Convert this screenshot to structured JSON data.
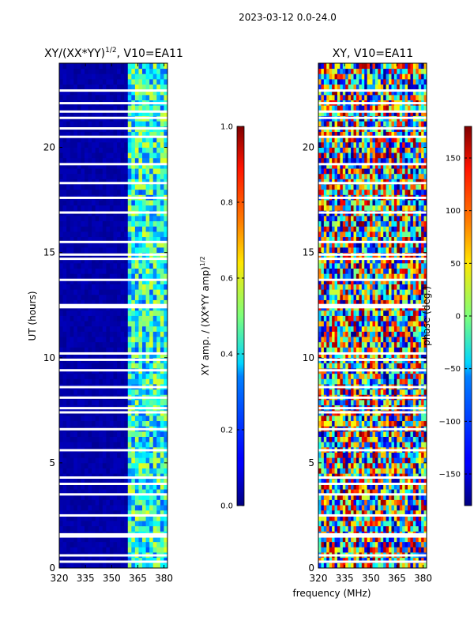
{
  "chart_data": {
    "suptitle": "2023-03-12 0.0-24.0",
    "common_xlabel": "frequency (MHz)",
    "panels": [
      {
        "type": "heatmap",
        "title": "XY/(XX*YY)^1/2, V10=EA11",
        "title_base": "XY/(XX*YY)",
        "title_sup": "1/2",
        "title_tail": ", V10=EA11",
        "xlabel": "frequency (MHz)",
        "ylabel": "UT (hours)",
        "x_ticks": [
          320,
          335,
          350,
          365,
          380
        ],
        "x_tick_labels": [
          "320",
          "335",
          "350",
          "365",
          "380"
        ],
        "y_ticks": [
          0,
          5,
          10,
          15,
          20
        ],
        "y_tick_labels": [
          "0",
          "5",
          "10",
          "15",
          "20"
        ],
        "xlim": [
          320,
          382
        ],
        "ylim": [
          0,
          24
        ],
        "colorbar": {
          "label": "XY amp. / (XX*YY amp)^1/2",
          "label_base": "XY amp. / (XX*YY amp)",
          "label_sup": "1/2",
          "range": [
            0.0,
            1.0
          ],
          "ticks": [
            0.0,
            0.2,
            0.4,
            0.6,
            0.8,
            1.0
          ],
          "tick_labels": [
            "0.0",
            "0.2",
            "0.4",
            "0.6",
            "0.8",
            "1.0"
          ]
        },
        "description_bands": {
          "low_band_mhz": [
            320,
            359
          ],
          "low_band_value": 0.02,
          "high_band_mhz": [
            359,
            380
          ],
          "high_band_value_range": [
            0.2,
            0.6
          ]
        }
      },
      {
        "type": "heatmap",
        "title": "XY, V10=EA11",
        "xlabel": "frequency (MHz)",
        "ylabel": "",
        "x_ticks": [
          320,
          335,
          350,
          365,
          380
        ],
        "x_tick_labels": [
          "320",
          "335",
          "350",
          "365",
          "380"
        ],
        "y_ticks": [
          0,
          5,
          10,
          15,
          20
        ],
        "y_tick_labels": [
          "0",
          "5",
          "10",
          "15",
          "20"
        ],
        "xlim": [
          320,
          382
        ],
        "ylim": [
          0,
          24
        ],
        "colorbar": {
          "label": "phase (deg.)",
          "range": [
            -180,
            180
          ],
          "ticks": [
            -150,
            -100,
            -50,
            0,
            50,
            100,
            150
          ],
          "tick_labels": [
            "−150",
            "−100",
            "−50",
            "0",
            "50",
            "100",
            "150"
          ]
        }
      }
    ],
    "flagged_gaps_hours": [
      0.3,
      0.6,
      1.5,
      1.6,
      2.5,
      3.5,
      4.0,
      4.3,
      5.6,
      6.6,
      7.4,
      7.6,
      8.1,
      8.6,
      9.4,
      9.9,
      10.2,
      12.4,
      12.5,
      13.7,
      14.7,
      14.9,
      15.5,
      16.9,
      17.6,
      18.3,
      19.2,
      20.5,
      20.9,
      21.4,
      21.7,
      22.1,
      22.7
    ]
  }
}
